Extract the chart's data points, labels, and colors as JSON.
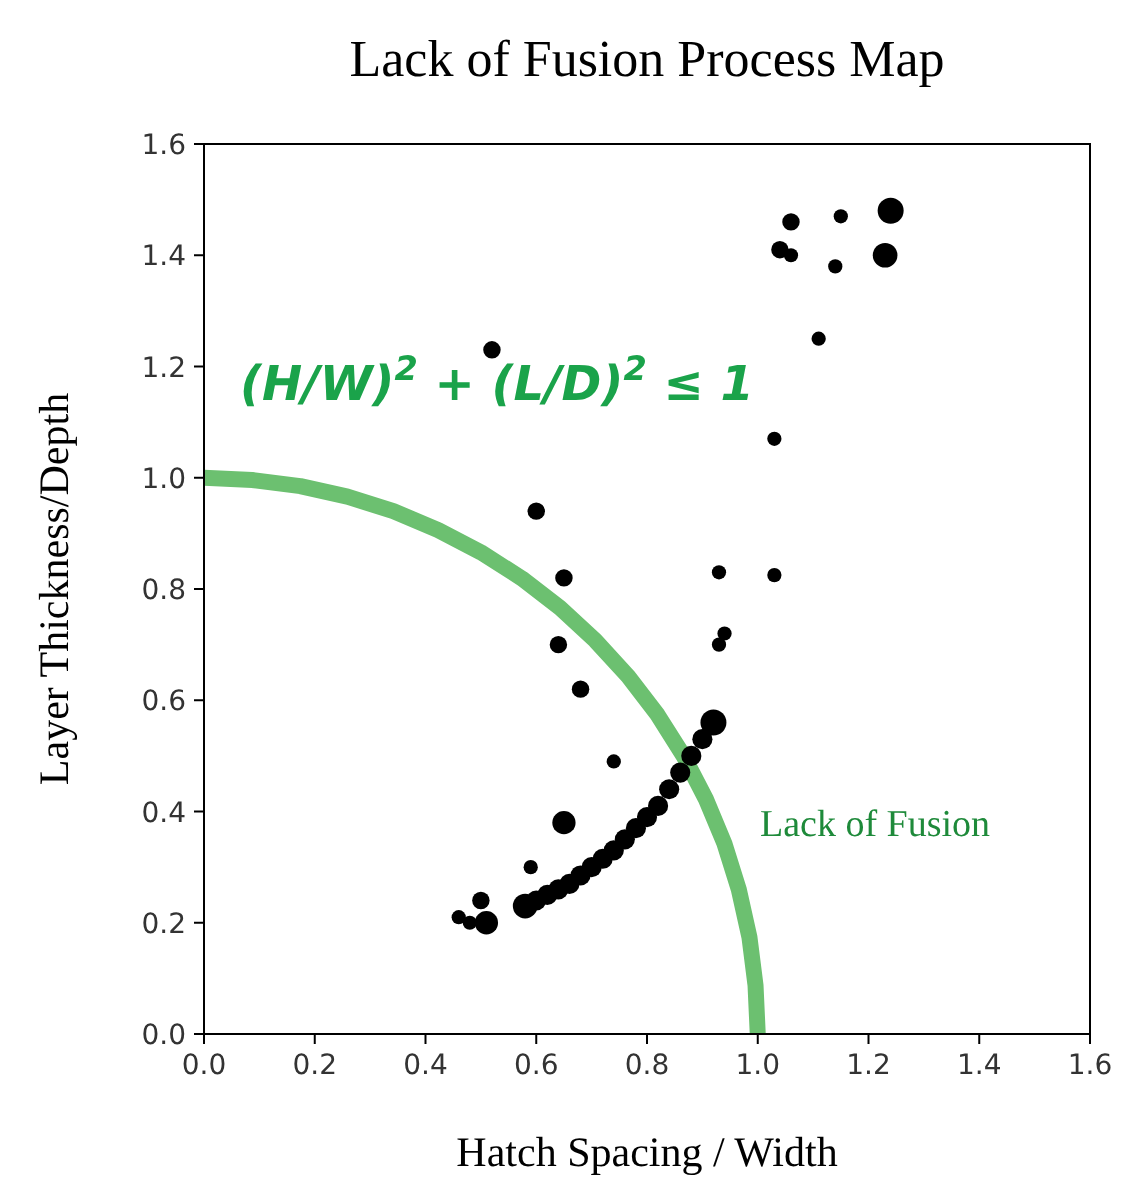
{
  "chart_data": {
    "type": "bubble",
    "title": "Lack of Fusion Process Map",
    "xlabel": "Hatch Spacing / Width",
    "ylabel": "Layer Thickness/Depth",
    "xlim": [
      0,
      1.6
    ],
    "ylim": [
      0,
      1.6
    ],
    "xticks": [
      {
        "value": 0,
        "label": "0.0"
      },
      0.2,
      0.4,
      0.6,
      0.8,
      {
        "value": 1,
        "label": "1.0"
      },
      1.2,
      1.4,
      1.6
    ],
    "yticks": [
      {
        "value": 0,
        "label": "0.0"
      },
      0.2,
      0.4,
      0.6,
      0.8,
      {
        "value": 1,
        "label": "1.0"
      },
      1.2,
      1.4,
      1.6
    ],
    "grid": false,
    "annotations": [
      "(H/W)$^{2}$ + (L/D)$^{2}$ ≤ 1",
      "Lack of Fusion"
    ],
    "series": [
      {
        "type": "line",
        "color": "#6cc070",
        "line_style": "solid",
        "x": [
          1,
          0.996,
          0.985,
          0.966,
          0.94,
          0.906,
          0.866,
          0.819,
          0.766,
          0.707,
          0.643,
          0.574,
          0.5,
          0.423,
          0.342,
          0.259,
          0.174,
          0.087,
          0
        ],
        "values": [
          0,
          0.087,
          0.174,
          0.259,
          0.342,
          0.423,
          0.5,
          0.574,
          0.643,
          0.707,
          0.766,
          0.819,
          0.866,
          0.906,
          0.94,
          0.966,
          0.985,
          0.996,
          1
        ]
      },
      {
        "color": "#000000",
        "x": [
          0.52,
          1.11,
          1.03,
          0.6,
          0.65,
          0.93,
          1.03,
          0.94,
          0.93,
          0.64,
          0.68,
          1.04,
          1.06,
          1.06,
          1.15,
          1.24,
          1.14,
          1.23,
          0.74,
          0.65,
          0.59,
          0.5,
          0.46,
          0.48,
          0.51,
          0.58,
          0.6,
          0.62,
          0.64,
          0.66,
          0.68,
          0.7,
          0.72,
          0.74,
          0.76,
          0.78,
          0.8,
          0.82,
          0.84,
          0.86,
          0.88,
          0.9,
          0.92
        ],
        "values": [
          1.23,
          1.25,
          1.07,
          0.94,
          0.82,
          0.83,
          0.825,
          0.72,
          0.7,
          0.7,
          0.62,
          1.41,
          1.4,
          1.46,
          1.47,
          1.48,
          1.38,
          1.4,
          0.49,
          0.38,
          0.3,
          0.24,
          0.21,
          0.2,
          0.2,
          0.23,
          0.24,
          0.25,
          0.26,
          0.27,
          0.285,
          0.3,
          0.315,
          0.33,
          0.35,
          0.37,
          0.39,
          0.41,
          0.44,
          0.47,
          0.5,
          0.53,
          0.56
        ],
        "sizes": [
          0.45,
          0.3,
          0.3,
          0.45,
          0.45,
          0.3,
          0.3,
          0.3,
          0.3,
          0.45,
          0.45,
          0.45,
          0.3,
          0.45,
          0.3,
          1,
          0.3,
          0.9,
          0.3,
          0.8,
          0.3,
          0.45,
          0.3,
          0.3,
          0.8,
          0.9,
          0.6,
          0.6,
          0.6,
          0.6,
          0.6,
          0.6,
          0.6,
          0.6,
          0.6,
          0.6,
          0.6,
          0.6,
          0.6,
          0.6,
          0.6,
          0.6,
          1
        ]
      }
    ]
  }
}
